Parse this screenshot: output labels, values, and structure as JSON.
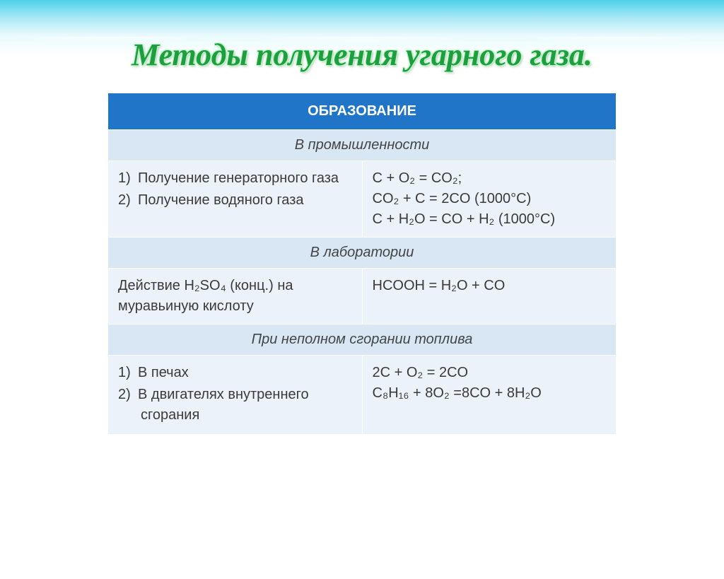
{
  "title": "Методы получения угарного газа.",
  "table": {
    "header": "ОБРАЗОВАНИЕ",
    "sections": [
      {
        "subheader": "В промышленности",
        "left_items": [
          {
            "num": "1)",
            "text": "Получение генераторного газа"
          },
          {
            "num": "2)",
            "text": "Получение водяного газа"
          }
        ],
        "right_lines": [
          "C + O₂ = CO₂;",
          "CO₂ + C = 2CO (1000°C)",
          "C + H₂O = CO + H₂ (1000°C)"
        ]
      },
      {
        "subheader": "В лаборатории",
        "left_text": "Действие H₂SO₄ (конц.) на муравьиную кислоту",
        "right_lines": [
          "HCOOH = H₂O + CO"
        ]
      },
      {
        "subheader": "При неполном сгорании топлива",
        "left_items": [
          {
            "num": "1)",
            "text": "В печах"
          },
          {
            "num": "2)",
            "text": "В двигателях внутреннего сгорания"
          }
        ],
        "right_lines": [
          "2C + O₂ = 2CO",
          "C₈H₁₆ + 8O₂ =8CO + 8H₂O"
        ]
      }
    ]
  },
  "colors": {
    "header_bg": "#2175c8",
    "header_fg": "#ffffff",
    "sub_bg": "#d9e7f5",
    "cell_bg": "#ecf2fa",
    "title_color": "#1e9e3e"
  }
}
